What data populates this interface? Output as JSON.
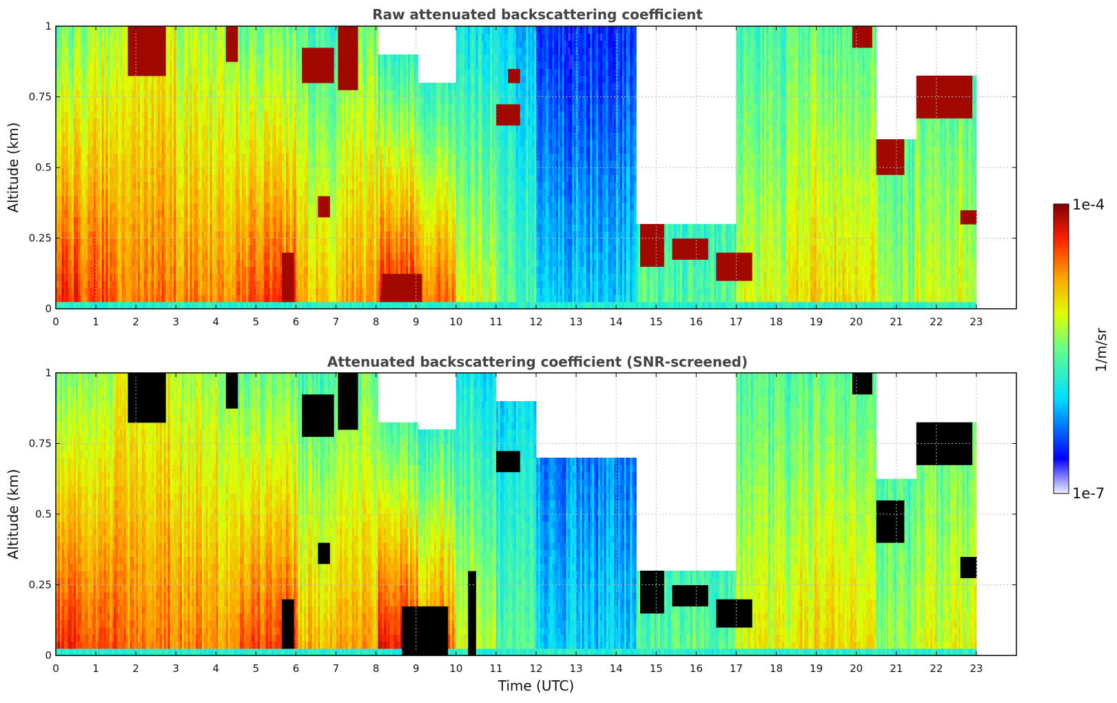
{
  "figure": {
    "colorbar": {
      "label": "1/m/sr",
      "min_label": "1e-7",
      "max_label": "1e-4",
      "colormap": "jet-like (white/lavender low → blue → cyan → green → yellow → orange → red → dark red high)"
    },
    "xlabel": "Time (UTC)"
  },
  "chart_data": [
    {
      "type": "heatmap",
      "title": "Raw attenuated backscattering coefficient",
      "xlabel": "",
      "ylabel": "Altitude (km)",
      "xlim": [
        0,
        24
      ],
      "ylim": [
        0,
        1
      ],
      "x_ticks": [
        "0",
        "1",
        "2",
        "3",
        "4",
        "5",
        "6",
        "7",
        "8",
        "9",
        "10",
        "11",
        "12",
        "13",
        "14",
        "15",
        "16",
        "17",
        "18",
        "19",
        "20",
        "21",
        "22",
        "23"
      ],
      "y_ticks": [
        "0",
        "0.25",
        "0.5",
        "0.75",
        "1"
      ],
      "grid": true,
      "masked_color": "none",
      "data_end_hour": 23.0,
      "time_profiles": [
        {
          "t0": 0.0,
          "t1": 0.5,
          "surface": 0.88,
          "top": 0.5,
          "top_alt": 1.0
        },
        {
          "t0": 0.5,
          "t1": 1.5,
          "surface": 0.85,
          "top": 0.55,
          "top_alt": 1.0
        },
        {
          "t0": 1.5,
          "t1": 3.0,
          "surface": 0.8,
          "top": 0.62,
          "top_alt": 1.0
        },
        {
          "t0": 3.0,
          "t1": 4.5,
          "surface": 0.78,
          "top": 0.56,
          "top_alt": 1.0
        },
        {
          "t0": 4.5,
          "t1": 6.0,
          "surface": 0.85,
          "top": 0.5,
          "top_alt": 1.0
        },
        {
          "t0": 6.0,
          "t1": 7.0,
          "surface": 0.72,
          "top": 0.45,
          "top_alt": 1.0
        },
        {
          "t0": 7.0,
          "t1": 8.0,
          "surface": 0.75,
          "top": 0.5,
          "top_alt": 1.0
        },
        {
          "t0": 8.0,
          "t1": 9.0,
          "surface": 0.9,
          "top": 0.35,
          "top_alt": 0.9
        },
        {
          "t0": 9.0,
          "t1": 10.0,
          "surface": 0.82,
          "top": 0.32,
          "top_alt": 0.8
        },
        {
          "t0": 10.0,
          "t1": 11.0,
          "surface": 0.62,
          "top": 0.36,
          "top_alt": 1.0
        },
        {
          "t0": 11.0,
          "t1": 12.0,
          "surface": 0.48,
          "top": 0.32,
          "top_alt": 1.0
        },
        {
          "t0": 12.0,
          "t1": 14.5,
          "surface": 0.33,
          "top": 0.16,
          "top_alt": 1.0
        },
        {
          "t0": 14.5,
          "t1": 17.0,
          "surface": 0.48,
          "top": 0.3,
          "top_alt": 0.3
        },
        {
          "t0": 17.0,
          "t1": 18.5,
          "surface": 0.62,
          "top": 0.45,
          "top_alt": 1.0
        },
        {
          "t0": 18.5,
          "t1": 20.5,
          "surface": 0.68,
          "top": 0.48,
          "top_alt": 1.0
        },
        {
          "t0": 20.5,
          "t1": 21.5,
          "surface": 0.55,
          "top": 0.4,
          "top_alt": 0.6
        },
        {
          "t0": 21.5,
          "t1": 23.0,
          "surface": 0.62,
          "top": 0.45,
          "top_alt": 0.82
        }
      ],
      "cloud_patches": [
        {
          "t0": 1.8,
          "t1": 2.7,
          "z0": 0.83,
          "z1": 1.0
        },
        {
          "t0": 4.2,
          "t1": 4.5,
          "z0": 0.87,
          "z1": 1.0
        },
        {
          "t0": 6.1,
          "t1": 6.9,
          "z0": 0.8,
          "z1": 0.92
        },
        {
          "t0": 7.0,
          "t1": 7.5,
          "z0": 0.78,
          "z1": 1.0
        },
        {
          "t0": 6.5,
          "t1": 6.8,
          "z0": 0.33,
          "z1": 0.39
        },
        {
          "t0": 11.0,
          "t1": 11.6,
          "z0": 0.64,
          "z1": 0.73
        },
        {
          "t0": 11.3,
          "t1": 11.6,
          "z0": 0.79,
          "z1": 0.86
        },
        {
          "t0": 14.6,
          "t1": 15.2,
          "z0": 0.16,
          "z1": 0.3
        },
        {
          "t0": 15.4,
          "t1": 16.3,
          "z0": 0.17,
          "z1": 0.24
        },
        {
          "t0": 16.5,
          "t1": 17.4,
          "z0": 0.1,
          "z1": 0.2
        },
        {
          "t0": 19.9,
          "t1": 20.4,
          "z0": 0.92,
          "z1": 1.0
        },
        {
          "t0": 20.5,
          "t1": 21.2,
          "z0": 0.47,
          "z1": 0.6
        },
        {
          "t0": 21.5,
          "t1": 22.9,
          "z0": 0.68,
          "z1": 0.84
        },
        {
          "t0": 22.6,
          "t1": 23.0,
          "z0": 0.3,
          "z1": 0.36
        },
        {
          "t0": 5.6,
          "t1": 5.9,
          "z0": 0.02,
          "z1": 0.2
        },
        {
          "t0": 8.1,
          "t1": 9.1,
          "z0": 0.03,
          "z1": 0.12
        }
      ]
    },
    {
      "type": "heatmap",
      "title": "Attenuated backscattering coefficient (SNR-screened)",
      "xlabel": "Time (UTC)",
      "ylabel": "Altitude (km)",
      "xlim": [
        0,
        24
      ],
      "ylim": [
        0,
        1
      ],
      "x_ticks": [
        "0",
        "1",
        "2",
        "3",
        "4",
        "5",
        "6",
        "7",
        "8",
        "9",
        "10",
        "11",
        "12",
        "13",
        "14",
        "15",
        "16",
        "17",
        "18",
        "19",
        "20",
        "21",
        "22",
        "23"
      ],
      "y_ticks": [
        "0",
        "0.25",
        "0.5",
        "0.75",
        "1"
      ],
      "grid": true,
      "masked_color": "black",
      "data_end_hour": 23.0,
      "time_profiles": [
        {
          "t0": 0.0,
          "t1": 0.5,
          "surface": 0.88,
          "top": 0.5,
          "top_alt": 1.0
        },
        {
          "t0": 0.5,
          "t1": 1.5,
          "surface": 0.85,
          "top": 0.55,
          "top_alt": 1.0
        },
        {
          "t0": 1.5,
          "t1": 3.0,
          "surface": 0.8,
          "top": 0.62,
          "top_alt": 1.0
        },
        {
          "t0": 3.0,
          "t1": 4.5,
          "surface": 0.78,
          "top": 0.56,
          "top_alt": 1.0
        },
        {
          "t0": 4.5,
          "t1": 6.0,
          "surface": 0.85,
          "top": 0.5,
          "top_alt": 1.0
        },
        {
          "t0": 6.0,
          "t1": 7.0,
          "surface": 0.72,
          "top": 0.45,
          "top_alt": 1.0
        },
        {
          "t0": 7.0,
          "t1": 8.0,
          "surface": 0.75,
          "top": 0.5,
          "top_alt": 1.0
        },
        {
          "t0": 8.0,
          "t1": 9.0,
          "surface": 0.9,
          "top": 0.35,
          "top_alt": 0.82
        },
        {
          "t0": 9.0,
          "t1": 10.0,
          "surface": 0.82,
          "top": 0.32,
          "top_alt": 0.8
        },
        {
          "t0": 10.0,
          "t1": 11.0,
          "surface": 0.62,
          "top": 0.36,
          "top_alt": 1.0
        },
        {
          "t0": 11.0,
          "t1": 12.0,
          "surface": 0.48,
          "top": 0.32,
          "top_alt": 0.9
        },
        {
          "t0": 12.0,
          "t1": 14.5,
          "surface": 0.33,
          "top": 0.2,
          "top_alt": 0.7
        },
        {
          "t0": 14.5,
          "t1": 17.0,
          "surface": 0.48,
          "top": 0.3,
          "top_alt": 0.3
        },
        {
          "t0": 17.0,
          "t1": 18.5,
          "surface": 0.62,
          "top": 0.45,
          "top_alt": 1.0
        },
        {
          "t0": 18.5,
          "t1": 20.5,
          "surface": 0.68,
          "top": 0.48,
          "top_alt": 1.0
        },
        {
          "t0": 20.5,
          "t1": 21.5,
          "surface": 0.55,
          "top": 0.4,
          "top_alt": 0.62
        },
        {
          "t0": 21.5,
          "t1": 23.0,
          "surface": 0.62,
          "top": 0.45,
          "top_alt": 0.82
        }
      ],
      "cloud_patches": [
        {
          "t0": 1.8,
          "t1": 2.7,
          "z0": 0.83,
          "z1": 1.0
        },
        {
          "t0": 4.2,
          "t1": 4.5,
          "z0": 0.87,
          "z1": 1.0
        },
        {
          "t0": 6.1,
          "t1": 6.9,
          "z0": 0.78,
          "z1": 0.92
        },
        {
          "t0": 7.0,
          "t1": 7.5,
          "z0": 0.8,
          "z1": 1.0
        },
        {
          "t0": 6.5,
          "t1": 6.8,
          "z0": 0.33,
          "z1": 0.39
        },
        {
          "t0": 11.0,
          "t1": 11.6,
          "z0": 0.64,
          "z1": 0.73
        },
        {
          "t0": 14.6,
          "t1": 15.2,
          "z0": 0.16,
          "z1": 0.3
        },
        {
          "t0": 15.4,
          "t1": 16.3,
          "z0": 0.17,
          "z1": 0.24
        },
        {
          "t0": 16.5,
          "t1": 17.4,
          "z0": 0.1,
          "z1": 0.2
        },
        {
          "t0": 19.9,
          "t1": 20.4,
          "z0": 0.92,
          "z1": 1.0
        },
        {
          "t0": 20.5,
          "t1": 21.2,
          "z0": 0.41,
          "z1": 0.56
        },
        {
          "t0": 21.5,
          "t1": 22.9,
          "z0": 0.68,
          "z1": 0.84
        },
        {
          "t0": 22.6,
          "t1": 23.0,
          "z0": 0.28,
          "z1": 0.36
        },
        {
          "t0": 5.6,
          "t1": 5.9,
          "z0": 0.02,
          "z1": 0.2
        },
        {
          "t0": 8.6,
          "t1": 9.8,
          "z0": 0.0,
          "z1": 0.18
        },
        {
          "t0": 10.3,
          "t1": 10.5,
          "z0": 0.0,
          "z1": 0.3
        }
      ]
    }
  ]
}
